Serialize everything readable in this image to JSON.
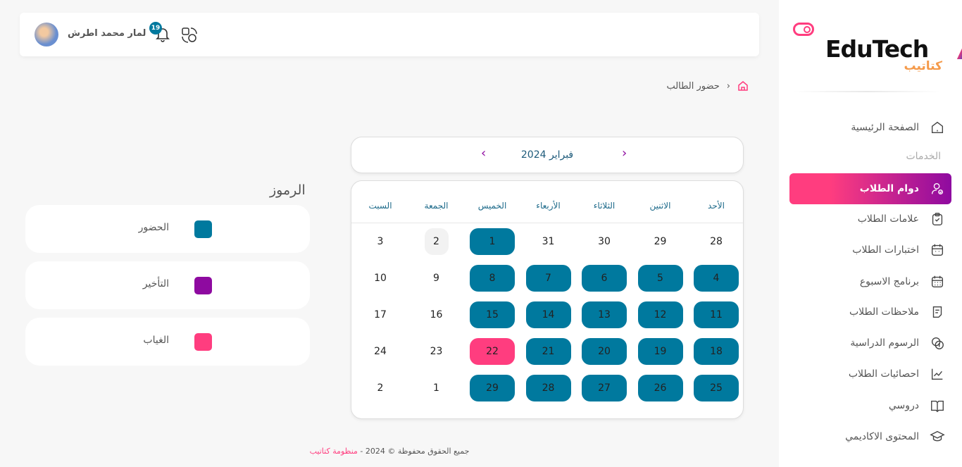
{
  "sidebar": {
    "logo": {
      "en": "EduTech",
      "ar": "كتاتيب"
    },
    "section_label": "الخدمات",
    "items": [
      {
        "label": "الصفحة الرئيسية",
        "icon": "home-icon"
      },
      {
        "label": "دوام الطلاب",
        "icon": "user-check-icon",
        "active": true
      },
      {
        "label": "علامات الطلاب",
        "icon": "clipboard-check-icon"
      },
      {
        "label": "اختبارات الطلاب",
        "icon": "calendar-icon"
      },
      {
        "label": "برنامج الاسبوع",
        "icon": "calendar-grid-icon"
      },
      {
        "label": "ملاحظات الطلاب",
        "icon": "notes-icon"
      },
      {
        "label": "الرسوم الدراسية",
        "icon": "dollar-coin-icon"
      },
      {
        "label": "احصائيات الطلاب",
        "icon": "chart-line-icon"
      },
      {
        "label": "دروسي",
        "icon": "book-icon"
      },
      {
        "label": "المحتوى الاكاديمي",
        "icon": "graduation-cap-icon"
      }
    ]
  },
  "topbar": {
    "user_name": "لمار محمد اطرش",
    "notification_count": "19"
  },
  "breadcrumb": {
    "current": "حضور الطالب"
  },
  "calendar": {
    "month_label": "فبراير 2024",
    "weekdays": [
      "الأحد",
      "الاثنين",
      "الثلاثاء",
      "الأربعاء",
      "الخميس",
      "الجمعة",
      "السبت"
    ],
    "weeks": [
      [
        {
          "d": "28",
          "s": ""
        },
        {
          "d": "29",
          "s": ""
        },
        {
          "d": "30",
          "s": ""
        },
        {
          "d": "31",
          "s": ""
        },
        {
          "d": "1",
          "s": "present"
        },
        {
          "d": "2",
          "s": "today"
        },
        {
          "d": "3",
          "s": ""
        }
      ],
      [
        {
          "d": "4",
          "s": "present"
        },
        {
          "d": "5",
          "s": "present"
        },
        {
          "d": "6",
          "s": "present"
        },
        {
          "d": "7",
          "s": "present"
        },
        {
          "d": "8",
          "s": "present"
        },
        {
          "d": "9",
          "s": ""
        },
        {
          "d": "10",
          "s": ""
        }
      ],
      [
        {
          "d": "11",
          "s": "present"
        },
        {
          "d": "12",
          "s": "present"
        },
        {
          "d": "13",
          "s": "present"
        },
        {
          "d": "14",
          "s": "present"
        },
        {
          "d": "15",
          "s": "present"
        },
        {
          "d": "16",
          "s": ""
        },
        {
          "d": "17",
          "s": ""
        }
      ],
      [
        {
          "d": "18",
          "s": "present"
        },
        {
          "d": "19",
          "s": "present"
        },
        {
          "d": "20",
          "s": "present"
        },
        {
          "d": "21",
          "s": "present"
        },
        {
          "d": "22",
          "s": "absent"
        },
        {
          "d": "23",
          "s": ""
        },
        {
          "d": "24",
          "s": ""
        }
      ],
      [
        {
          "d": "25",
          "s": "present"
        },
        {
          "d": "26",
          "s": "present"
        },
        {
          "d": "27",
          "s": "present"
        },
        {
          "d": "28",
          "s": "present"
        },
        {
          "d": "29",
          "s": "present"
        },
        {
          "d": "1",
          "s": ""
        },
        {
          "d": "2",
          "s": ""
        }
      ]
    ]
  },
  "legend": {
    "title": "الرموز",
    "items": [
      {
        "label": "الحضور",
        "color": "#00799e"
      },
      {
        "label": "التأخير",
        "color": "#8e0aa0"
      },
      {
        "label": "الغياب",
        "color": "#ff3d7f"
      }
    ]
  },
  "footer": {
    "text": "جميع الحقوق محفوظة © 2024 - ",
    "brand": "منظومة كتاتيب"
  }
}
